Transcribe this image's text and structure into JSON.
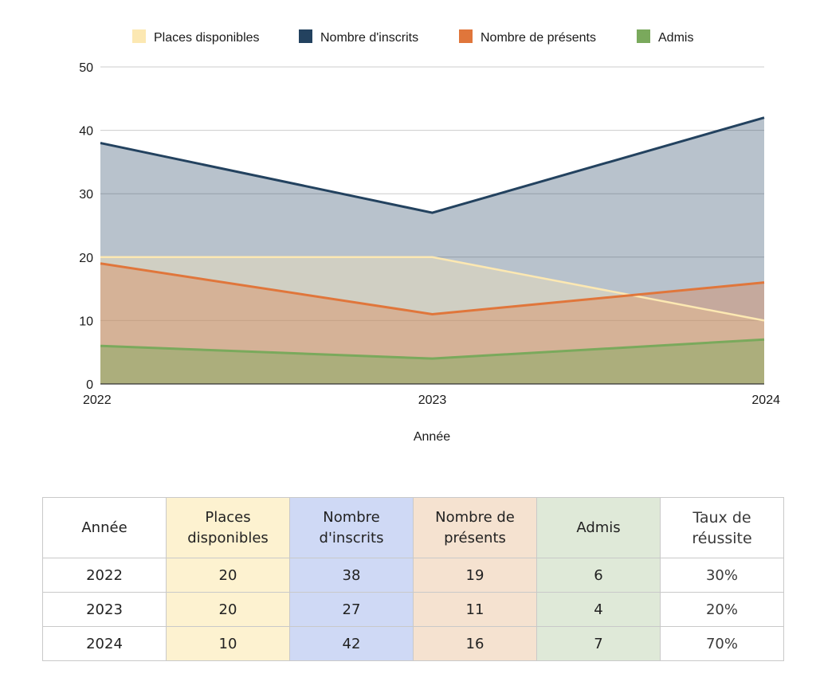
{
  "chart_data": {
    "type": "area",
    "x": [
      "2022",
      "2023",
      "2024"
    ],
    "xlabel": "Année",
    "ylabel": "",
    "ylim": [
      0,
      50
    ],
    "yticks": [
      0,
      10,
      20,
      30,
      40,
      50
    ],
    "grid": true,
    "legend_position": "top",
    "series": [
      {
        "name": "Places disponibles",
        "values": [
          20,
          20,
          10
        ],
        "color": "#fce8b2",
        "line_color": "#fce8b2"
      },
      {
        "name": "Nombre d'inscrits",
        "values": [
          38,
          27,
          42
        ],
        "color": "#23425f",
        "line_color": "#23425f"
      },
      {
        "name": "Nombre de présents",
        "values": [
          19,
          11,
          16
        ],
        "color": "#e0763b",
        "line_color": "#e0763b"
      },
      {
        "name": "Admis",
        "values": [
          6,
          4,
          7
        ],
        "color": "#7aa95c",
        "line_color": "#7aa95c"
      }
    ]
  },
  "table": {
    "headers": [
      "Année",
      "Places disponibles",
      "Nombre d'inscrits",
      "Nombre de présents",
      "Admis",
      "Taux de réussite"
    ],
    "rows": [
      [
        "2022",
        "20",
        "38",
        "19",
        "6",
        "30%"
      ],
      [
        "2023",
        "20",
        "27",
        "11",
        "4",
        "20%"
      ],
      [
        "2024",
        "10",
        "42",
        "16",
        "7",
        "70%"
      ]
    ],
    "column_colors": [
      "#ffffff",
      "#fdf2d0",
      "#cfd9f5",
      "#f5e2d0",
      "#dfe9d8",
      "#ffffff"
    ]
  }
}
